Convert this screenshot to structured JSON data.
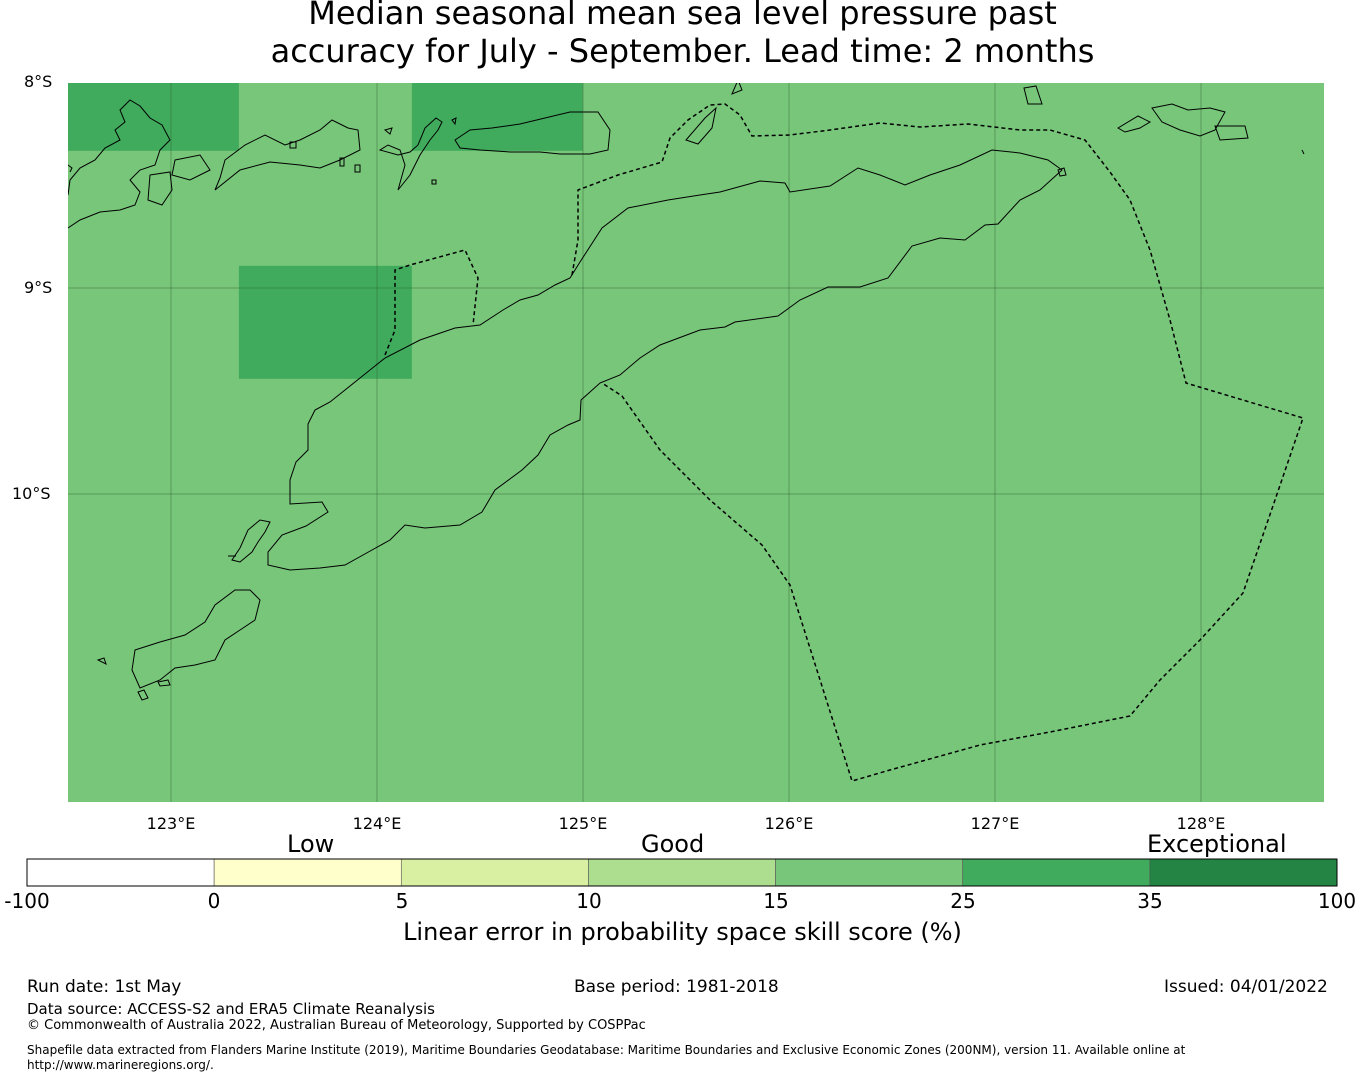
{
  "title": {
    "line1": "Median seasonal mean sea level pressure past",
    "line2": "accuracy for July - September. Lead time: 2 months"
  },
  "map": {
    "lat_labels": [
      "8°S",
      "9°S",
      "10°S"
    ],
    "lon_labels": [
      "123°E",
      "124°E",
      "125°E",
      "126°E",
      "127°E",
      "128°E"
    ],
    "lat_range": [
      -11.5,
      -8.0
    ],
    "lon_range": [
      122.5,
      128.6
    ],
    "background_color": "#78c67a",
    "skill_cells": [
      {
        "lon": [
          122.5,
          123.33
        ],
        "lat": [
          -8.33,
          -8.0
        ],
        "skill_band": "25-35",
        "color": "#40ab5c"
      },
      {
        "lon": [
          124.17,
          125.0
        ],
        "lat": [
          -8.33,
          -8.0
        ],
        "skill_band": "25-35",
        "color": "#40ab5c"
      },
      {
        "lon": [
          123.33,
          124.17
        ],
        "lat": [
          -9.44,
          -8.89
        ],
        "skill_band": "25-35",
        "color": "#40ab5c"
      }
    ]
  },
  "colorbar": {
    "category_labels": [
      "Low",
      "Good",
      "Exceptional"
    ],
    "ticks": [
      "-100",
      "0",
      "5",
      "10",
      "15",
      "25",
      "35",
      "100"
    ],
    "colors": [
      "#ffffff",
      "#ffffcc",
      "#d9f0a3",
      "#addd8e",
      "#78c67a",
      "#40ab5c",
      "#238443"
    ],
    "title": "Linear error in probability space skill score (%)"
  },
  "footer": {
    "run_date": "Run date: 1st May",
    "base_period": "Base period: 1981-2018",
    "issued": "Issued: 04/01/2022",
    "data_source": "Data source: ACCESS-S2 and ERA5 Climate Reanalysis",
    "copyright": "© Commonwealth of Australia 2022, Australian Bureau of Meteorology, Supported by COSPPac",
    "shapefile": "Shapefile data extracted from Flanders Marine Institute (2019), Maritime Boundaries Geodatabase: Maritime Boundaries and Exclusive Economic Zones (200NM), version 11. Available online at http://www.marineregions.org/."
  }
}
